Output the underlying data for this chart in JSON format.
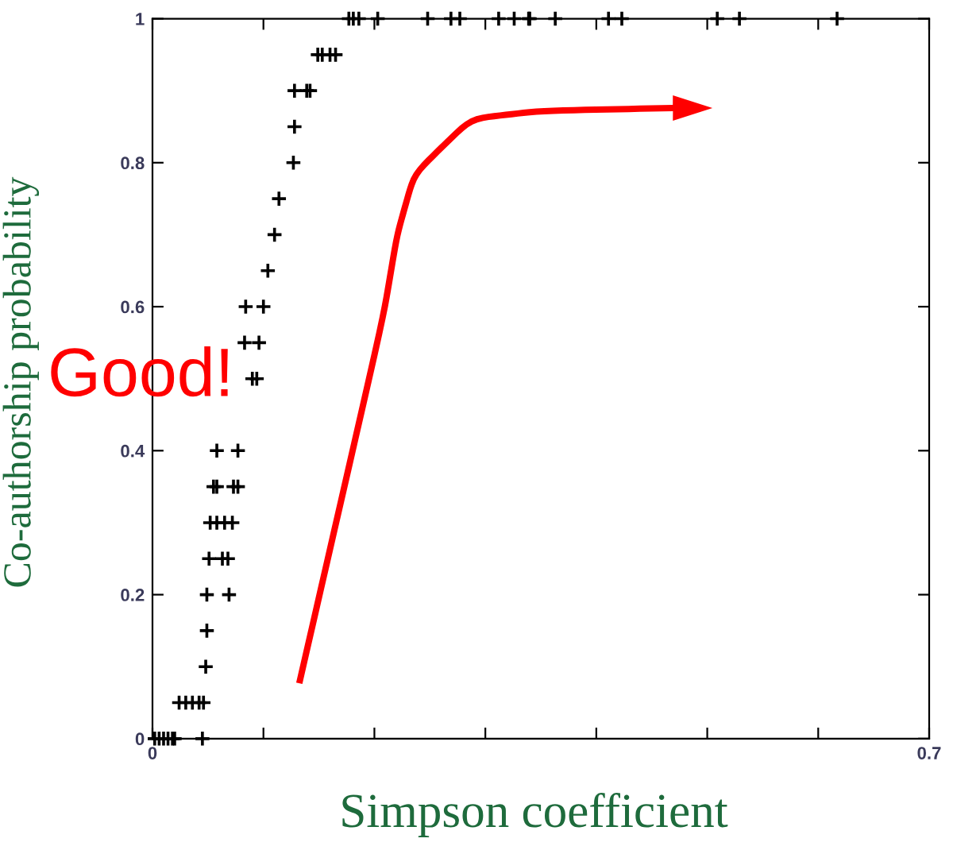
{
  "chart_data": {
    "type": "scatter",
    "xlabel": "Simpson coefficient",
    "ylabel": "Co-authorship probability",
    "annotations": [
      "Good!"
    ],
    "series": [
      {
        "color": "#000000",
        "x": [
          0.002,
          0.006,
          0.01,
          0.014,
          0.018,
          0.02,
          0.045,
          0.024,
          0.03,
          0.036,
          0.042,
          0.046,
          0.048,
          0.049,
          0.049,
          0.069,
          0.051,
          0.063,
          0.068,
          0.052,
          0.058,
          0.065,
          0.072,
          0.055,
          0.058,
          0.073,
          0.077,
          0.058,
          0.077,
          0.09,
          0.094,
          0.083,
          0.096,
          0.084,
          0.1,
          0.104,
          0.11,
          0.114,
          0.127,
          0.128,
          0.128,
          0.139,
          0.142,
          0.149,
          0.153,
          0.16,
          0.165,
          0.177,
          0.181,
          0.186,
          0.203,
          0.248,
          0.269,
          0.277,
          0.312,
          0.326,
          0.339,
          0.34,
          0.363,
          0.411,
          0.423,
          0.509,
          0.529,
          0.617
        ],
        "values": [
          0,
          0,
          0,
          0,
          0,
          0,
          0,
          0.05,
          0.05,
          0.05,
          0.05,
          0.05,
          0.1,
          0.15,
          0.2,
          0.2,
          0.25,
          0.25,
          0.25,
          0.3,
          0.3,
          0.3,
          0.3,
          0.35,
          0.35,
          0.35,
          0.35,
          0.4,
          0.4,
          0.5,
          0.5,
          0.55,
          0.55,
          0.6,
          0.6,
          0.65,
          0.7,
          0.75,
          0.8,
          0.85,
          0.9,
          0.9,
          0.9,
          0.95,
          0.95,
          0.95,
          0.95,
          1,
          1,
          1,
          1,
          1,
          1,
          1,
          1,
          1,
          1,
          1,
          1,
          1,
          1,
          1,
          1,
          1
        ]
      }
    ],
    "marker": "cross",
    "xlim": [
      0,
      0.7
    ],
    "ylim": [
      0,
      1
    ],
    "xticks": [
      0,
      {
        "value": 0.1,
        "label": null
      },
      {
        "value": 0.2,
        "label": null
      },
      {
        "value": 0.3,
        "label": null
      },
      {
        "value": 0.4,
        "label": null
      },
      {
        "value": 0.5,
        "label": null
      },
      {
        "value": 0.6,
        "label": null
      },
      0.7
    ],
    "yticks": [
      0,
      0.2,
      0.4,
      0.6,
      0.8,
      1
    ],
    "grid": false,
    "legend": false
  }
}
